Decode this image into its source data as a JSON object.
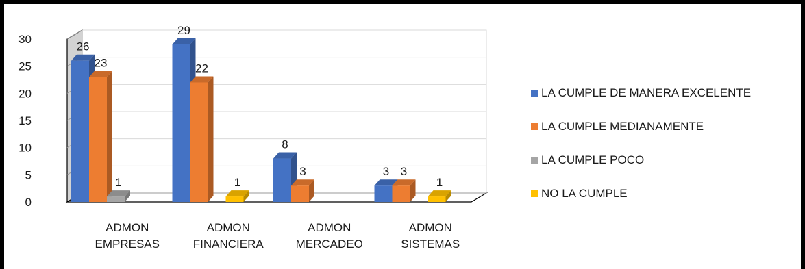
{
  "chart_data": {
    "type": "bar",
    "title": "",
    "xlabel": "",
    "ylabel": "",
    "ylim": [
      0,
      30
    ],
    "yticks": [
      0,
      5,
      10,
      15,
      20,
      25,
      30
    ],
    "categories": [
      [
        "ADMON",
        "EMPRESAS"
      ],
      [
        "ADMON",
        "FINANCIERA"
      ],
      [
        "ADMON",
        "MERCADEO"
      ],
      [
        "ADMON",
        "SISTEMAS"
      ]
    ],
    "series": [
      {
        "name": "LA CUMPLE DE MANERA EXCELENTE",
        "color": "#4472C4",
        "values": [
          26,
          29,
          8,
          3
        ]
      },
      {
        "name": "LA CUMPLE MEDIANAMENTE",
        "color": "#ED7D31",
        "values": [
          23,
          22,
          3,
          3
        ]
      },
      {
        "name": "LA CUMPLE POCO",
        "color": "#A5A5A5",
        "values": [
          1,
          null,
          null,
          null
        ]
      },
      {
        "name": "NO LA CUMPLE",
        "color": "#FFC000",
        "values": [
          null,
          1,
          null,
          1
        ]
      }
    ],
    "grid": true,
    "legend_position": "right",
    "style": "3d-clustered-column"
  }
}
